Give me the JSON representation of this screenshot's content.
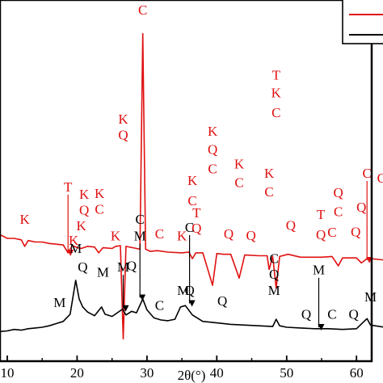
{
  "chart_data": {
    "type": "line",
    "xlabel": "2θ(°)",
    "xlim": [
      8,
      64
    ],
    "x_ticks": [
      "10",
      "20",
      "30",
      "40",
      "50",
      "60"
    ],
    "y_ticks_visible": false,
    "legend": {
      "placement": "top-right",
      "entries": [
        "",
        ""
      ]
    },
    "series": [
      {
        "color": "#e01010",
        "points": [
          [
            8,
            0.36
          ],
          [
            9,
            0.35
          ],
          [
            10,
            0.34
          ],
          [
            11,
            0.34
          ],
          [
            12,
            0.336
          ],
          [
            12.5,
            0.318
          ],
          [
            13,
            0.334
          ],
          [
            14,
            0.33
          ],
          [
            15,
            0.33
          ],
          [
            16,
            0.326
          ],
          [
            17,
            0.324
          ],
          [
            18,
            0.322
          ],
          [
            18.7,
            0.3
          ],
          [
            19.3,
            0.32
          ],
          [
            20.1,
            0.314
          ],
          [
            20.6,
            0.312
          ],
          [
            21.5,
            0.318
          ],
          [
            22.5,
            0.316
          ],
          [
            23.1,
            0.3
          ],
          [
            23.7,
            0.314
          ],
          [
            25,
            0.312
          ],
          [
            25.5,
            0.318
          ],
          [
            26.2,
            0.32
          ],
          [
            26.6,
            0.062
          ],
          [
            27,
            0.318
          ],
          [
            28,
            0.314
          ],
          [
            29,
            0.31
          ],
          [
            29.4,
            0.907
          ],
          [
            29.8,
            0.31
          ],
          [
            30.5,
            0.304
          ],
          [
            31.5,
            0.306
          ],
          [
            33,
            0.302
          ],
          [
            35,
            0.3
          ],
          [
            36,
            0.302
          ],
          [
            36.5,
            0.284
          ],
          [
            37,
            0.3
          ],
          [
            38,
            0.3
          ],
          [
            39.4,
            0.21
          ],
          [
            40,
            0.298
          ],
          [
            41,
            0.296
          ],
          [
            42,
            0.296
          ],
          [
            43.2,
            0.23
          ],
          [
            44,
            0.294
          ],
          [
            46,
            0.292
          ],
          [
            47.2,
            0.292
          ],
          [
            47.5,
            0.254
          ],
          [
            48,
            0.29
          ],
          [
            48.5,
            0.202
          ],
          [
            49,
            0.29
          ],
          [
            50.2,
            0.296
          ],
          [
            52,
            0.288
          ],
          [
            54,
            0.288
          ],
          [
            55,
            0.288
          ],
          [
            56.5,
            0.29
          ],
          [
            57.4,
            0.264
          ],
          [
            58,
            0.286
          ],
          [
            60,
            0.286
          ],
          [
            60.7,
            0.272
          ],
          [
            61.5,
            0.284
          ],
          [
            62,
            0.284
          ],
          [
            64,
            0.28
          ]
        ]
      },
      {
        "color": "#000000",
        "points": [
          [
            8,
            0.076
          ],
          [
            9,
            0.082
          ],
          [
            10,
            0.084
          ],
          [
            11,
            0.088
          ],
          [
            12,
            0.086
          ],
          [
            13,
            0.09
          ],
          [
            14,
            0.092
          ],
          [
            15,
            0.094
          ],
          [
            16,
            0.098
          ],
          [
            17,
            0.104
          ],
          [
            18,
            0.11
          ],
          [
            19,
            0.13
          ],
          [
            19.8,
            0.224
          ],
          [
            20.3,
            0.172
          ],
          [
            20.8,
            0.15
          ],
          [
            21.5,
            0.136
          ],
          [
            22.5,
            0.126
          ],
          [
            23.5,
            0.15
          ],
          [
            24,
            0.13
          ],
          [
            25,
            0.124
          ],
          [
            26.5,
            0.144
          ],
          [
            27,
            0.128
          ],
          [
            27.8,
            0.138
          ],
          [
            28.5,
            0.134
          ],
          [
            29.4,
            0.172
          ],
          [
            30,
            0.142
          ],
          [
            31,
            0.12
          ],
          [
            32,
            0.114
          ],
          [
            33,
            0.112
          ],
          [
            34,
            0.116
          ],
          [
            34.8,
            0.15
          ],
          [
            35.5,
            0.154
          ],
          [
            36.5,
            0.128
          ],
          [
            38,
            0.11
          ],
          [
            40,
            0.106
          ],
          [
            42,
            0.102
          ],
          [
            44,
            0.1
          ],
          [
            46,
            0.098
          ],
          [
            48,
            0.096
          ],
          [
            48.5,
            0.116
          ],
          [
            49,
            0.098
          ],
          [
            50,
            0.094
          ],
          [
            52,
            0.092
          ],
          [
            54,
            0.09
          ],
          [
            56,
            0.09
          ],
          [
            58,
            0.088
          ],
          [
            60,
            0.09
          ],
          [
            61.5,
            0.118
          ],
          [
            62,
            0.1
          ],
          [
            64,
            0.094
          ]
        ]
      }
    ],
    "annotations": [
      {
        "text": "K",
        "x": 12.5,
        "y": 0.38,
        "color": "#e01010",
        "arrow": false
      },
      {
        "text": "T",
        "x": 18.7,
        "y": 0.47,
        "color": "#e01010",
        "arrow": true,
        "arrow_to": 0.3
      },
      {
        "text": "K",
        "x": 19.5,
        "y": 0.322,
        "color": "#e01010",
        "arrow": false
      },
      {
        "text": "K",
        "x": 21.0,
        "y": 0.45,
        "color": "#e01010",
        "arrow": false
      },
      {
        "text": "Q",
        "x": 21.0,
        "y": 0.406,
        "color": "#e01010",
        "arrow": false
      },
      {
        "text": "K",
        "x": 20.6,
        "y": 0.362,
        "color": "#e01010",
        "arrow": false
      },
      {
        "text": "K",
        "x": 23.2,
        "y": 0.452,
        "color": "#e01010",
        "arrow": false
      },
      {
        "text": "C",
        "x": 23.2,
        "y": 0.408,
        "color": "#e01010",
        "arrow": false
      },
      {
        "text": "K",
        "x": 25.5,
        "y": 0.334,
        "color": "#e01010",
        "arrow": false
      },
      {
        "text": "K",
        "x": 26.6,
        "y": 0.658,
        "color": "#e01010",
        "arrow": false
      },
      {
        "text": "Q",
        "x": 26.6,
        "y": 0.614,
        "color": "#e01010",
        "arrow": false
      },
      {
        "text": "C",
        "x": 29.4,
        "y": 0.96,
        "color": "#e01010",
        "arrow": false
      },
      {
        "text": "C",
        "x": 31.8,
        "y": 0.34,
        "color": "#e01010",
        "arrow": false
      },
      {
        "text": "K",
        "x": 35.0,
        "y": 0.334,
        "color": "#e01010",
        "arrow": false
      },
      {
        "text": "K",
        "x": 36.5,
        "y": 0.488,
        "color": "#e01010",
        "arrow": false
      },
      {
        "text": "C",
        "x": 36.5,
        "y": 0.432,
        "color": "#e01010",
        "arrow": false
      },
      {
        "text": "T",
        "x": 37.1,
        "y": 0.398,
        "color": "#e01010",
        "arrow": false
      },
      {
        "text": "Q",
        "x": 37.1,
        "y": 0.356,
        "color": "#e01010",
        "arrow": false
      },
      {
        "text": "K",
        "x": 39.4,
        "y": 0.624,
        "color": "#e01010",
        "arrow": false
      },
      {
        "text": "Q",
        "x": 39.4,
        "y": 0.574,
        "color": "#e01010",
        "arrow": false
      },
      {
        "text": "C",
        "x": 39.4,
        "y": 0.52,
        "color": "#e01010",
        "arrow": false
      },
      {
        "text": "Q",
        "x": 41.7,
        "y": 0.34,
        "color": "#e01010",
        "arrow": false
      },
      {
        "text": "K",
        "x": 43.2,
        "y": 0.534,
        "color": "#e01010",
        "arrow": false
      },
      {
        "text": "C",
        "x": 43.2,
        "y": 0.482,
        "color": "#e01010",
        "arrow": false
      },
      {
        "text": "Q",
        "x": 44.9,
        "y": 0.336,
        "color": "#e01010",
        "arrow": false
      },
      {
        "text": "K",
        "x": 47.5,
        "y": 0.508,
        "color": "#e01010",
        "arrow": false
      },
      {
        "text": "C",
        "x": 47.5,
        "y": 0.456,
        "color": "#e01010",
        "arrow": false
      },
      {
        "text": "T",
        "x": 48.5,
        "y": 0.78,
        "color": "#e01010",
        "arrow": false
      },
      {
        "text": "K",
        "x": 48.5,
        "y": 0.73,
        "color": "#e01010",
        "arrow": false
      },
      {
        "text": "C",
        "x": 48.5,
        "y": 0.676,
        "color": "#e01010",
        "arrow": false
      },
      {
        "text": "Q",
        "x": 50.6,
        "y": 0.364,
        "color": "#e01010",
        "arrow": false
      },
      {
        "text": "T",
        "x": 54.9,
        "y": 0.394,
        "color": "#e01010",
        "arrow": false
      },
      {
        "text": "Q",
        "x": 54.9,
        "y": 0.338,
        "color": "#e01010",
        "arrow": false
      },
      {
        "text": "C",
        "x": 56.5,
        "y": 0.344,
        "color": "#e01010",
        "arrow": false
      },
      {
        "text": "Q",
        "x": 57.4,
        "y": 0.454,
        "color": "#e01010",
        "arrow": false
      },
      {
        "text": "C",
        "x": 57.4,
        "y": 0.402,
        "color": "#e01010",
        "arrow": false
      },
      {
        "text": "Q",
        "x": 59.9,
        "y": 0.346,
        "color": "#e01010",
        "arrow": false
      },
      {
        "text": "Q",
        "x": 60.7,
        "y": 0.414,
        "color": "#e01010",
        "arrow": false
      },
      {
        "text": "C",
        "x": 61.5,
        "y": 0.508,
        "color": "#e01010",
        "arrow": true,
        "arrow_to": 0.28
      },
      {
        "text": "C",
        "x": 63.6,
        "y": 0.494,
        "color": "#e01010",
        "arrow": false
      },
      {
        "text": "M",
        "x": 17.5,
        "y": 0.15,
        "color": "#000000",
        "arrow": false
      },
      {
        "text": "M",
        "x": 19.8,
        "y": 0.3,
        "color": "#000000",
        "arrow": false
      },
      {
        "text": "Q",
        "x": 20.8,
        "y": 0.248,
        "color": "#000000",
        "arrow": false
      },
      {
        "text": "M",
        "x": 23.7,
        "y": 0.234,
        "color": "#000000",
        "arrow": false
      },
      {
        "text": "M",
        "x": 26.6,
        "y": 0.248,
        "color": "#000000",
        "arrow": true,
        "arrow_to": 0.146
      },
      {
        "text": "Q",
        "x": 27.8,
        "y": 0.252,
        "color": "#000000",
        "arrow": false
      },
      {
        "text": "C",
        "x": 29.0,
        "y": 0.38,
        "color": "#000000",
        "arrow": false
      },
      {
        "text": "M",
        "x": 29.0,
        "y": 0.334,
        "color": "#000000",
        "arrow": true,
        "arrow_to": 0.176
      },
      {
        "text": "C",
        "x": 31.8,
        "y": 0.142,
        "color": "#000000",
        "arrow": false
      },
      {
        "text": "C",
        "x": 36.1,
        "y": 0.358,
        "color": "#000000",
        "arrow": true,
        "arrow_to": 0.16
      },
      {
        "text": "M",
        "x": 35.2,
        "y": 0.184,
        "color": "#000000",
        "arrow": false
      },
      {
        "text": "Q",
        "x": 36.1,
        "y": 0.184,
        "color": "#000000",
        "arrow": false
      },
      {
        "text": "Q",
        "x": 40.8,
        "y": 0.154,
        "color": "#000000",
        "arrow": false
      },
      {
        "text": "C",
        "x": 48.2,
        "y": 0.272,
        "color": "#000000",
        "arrow": false
      },
      {
        "text": "Q",
        "x": 48.2,
        "y": 0.228,
        "color": "#000000",
        "arrow": false
      },
      {
        "text": "M",
        "x": 48.2,
        "y": 0.184,
        "color": "#000000",
        "arrow": false
      },
      {
        "text": "M",
        "x": 54.6,
        "y": 0.24,
        "color": "#000000",
        "arrow": true,
        "arrow_to": 0.094
      },
      {
        "text": "Q",
        "x": 52.8,
        "y": 0.118,
        "color": "#000000",
        "arrow": false
      },
      {
        "text": "C",
        "x": 56.5,
        "y": 0.118,
        "color": "#000000",
        "arrow": false
      },
      {
        "text": "Q",
        "x": 59.6,
        "y": 0.118,
        "color": "#000000",
        "arrow": false
      },
      {
        "text": "M",
        "x": 62.0,
        "y": 0.166,
        "color": "#000000",
        "arrow": false
      }
    ]
  }
}
